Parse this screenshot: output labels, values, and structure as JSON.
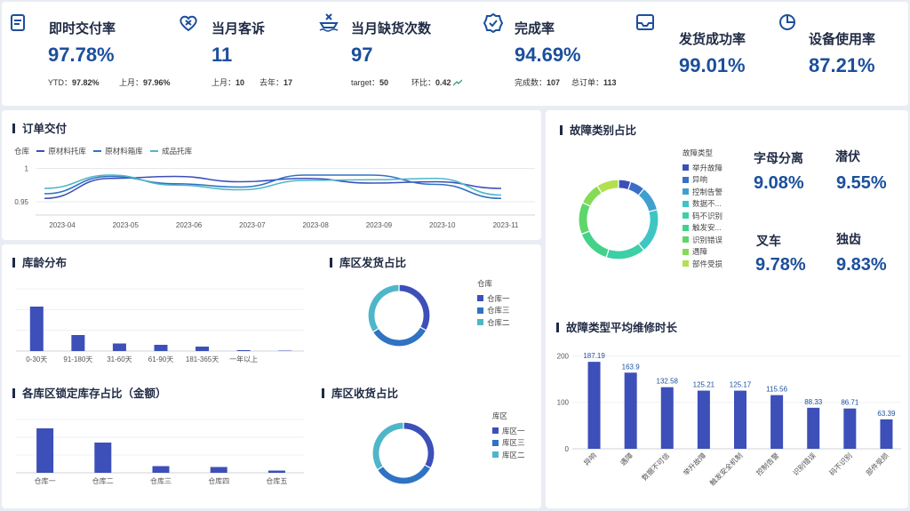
{
  "kpis": [
    {
      "title": "即时交付率",
      "value": "97.78%",
      "icon": "document-icon",
      "sub": [
        {
          "label": "YTD：",
          "value": "97.82%"
        },
        {
          "label": "上月：",
          "value": "97.96%"
        }
      ]
    },
    {
      "title": "当月客诉",
      "value": "11",
      "icon": "heart-x-icon",
      "sub": [
        {
          "label": "上月：",
          "value": "10"
        },
        {
          "label": "去年：",
          "value": "17"
        }
      ]
    },
    {
      "title": "当月缺货次数",
      "value": "97",
      "icon": "ship-x-icon",
      "sub": [
        {
          "label": "target：",
          "value": "50"
        },
        {
          "label": "环比：",
          "value": "0.42"
        }
      ]
    },
    {
      "title": "完成率",
      "value": "94.69%",
      "icon": "badge-check-icon",
      "sub": [
        {
          "label": "完成数：",
          "value": "107"
        },
        {
          "label": "总订单：",
          "value": "113"
        }
      ]
    },
    {
      "title": "发货成功率",
      "value": "99.01%",
      "icon": "inbox-icon",
      "sub": []
    },
    {
      "title": "设备使用率",
      "value": "87.21%",
      "icon": "pie-icon",
      "sub": []
    }
  ],
  "orders": {
    "title": "订单交付",
    "chart_data": {
      "type": "line",
      "legend_title": "仓库",
      "legend_position": "top-left",
      "x": [
        "2023-04",
        "2023-05",
        "2023-06",
        "2023-07",
        "2023-08",
        "2023-09",
        "2023-10",
        "2023-11"
      ],
      "ylim": [
        0.93,
        1.01
      ],
      "yticks": [
        "1",
        "0.95"
      ],
      "grid": true,
      "series": [
        {
          "name": "原材料托库",
          "color": "#3d4fb8",
          "values": [
            0.955,
            0.985,
            0.988,
            0.98,
            0.985,
            0.978,
            0.98,
            0.97
          ]
        },
        {
          "name": "原材料箱库",
          "color": "#2f73c2",
          "values": [
            0.962,
            0.988,
            0.977,
            0.972,
            0.99,
            0.99,
            0.976,
            0.955
          ]
        },
        {
          "name": "成品托库",
          "color": "#4fb6c9",
          "values": [
            0.97,
            0.99,
            0.975,
            0.968,
            0.982,
            0.983,
            0.985,
            0.96
          ]
        }
      ]
    }
  },
  "age": {
    "title": "库龄分布",
    "chart_data": {
      "type": "bar",
      "categories": [
        "0-30天",
        "91-180天",
        "31-60天",
        "61-90天",
        "181-365天",
        "一年以上",
        ""
      ],
      "values": [
        100,
        36,
        17,
        14,
        10,
        2,
        1
      ],
      "ylim": [
        0,
        140
      ],
      "color": "#3d4fb8"
    }
  },
  "lock": {
    "title": "各库区锁定库存占比（金额）",
    "chart_data": {
      "type": "bar",
      "categories": [
        "仓库一",
        "仓库二",
        "仓库三",
        "仓库四",
        "仓库五"
      ],
      "values": [
        100,
        68,
        15,
        13,
        5
      ],
      "ylim": [
        0,
        120
      ],
      "color": "#3d4fb8"
    }
  },
  "ship": {
    "title": "库区发货占比",
    "chart_data": {
      "type": "pie",
      "legend_title": "仓库",
      "labels": [
        "仓库一",
        "仓库三",
        "仓库二"
      ],
      "values": [
        33,
        33,
        34
      ],
      "colors": [
        "#3d4fb8",
        "#2f73c2",
        "#4fb6c9"
      ]
    }
  },
  "receive": {
    "title": "库区收货占比",
    "chart_data": {
      "type": "pie",
      "legend_title": "库区",
      "labels": [
        "库区一",
        "库区三",
        "库区二"
      ],
      "values": [
        33,
        33,
        34
      ],
      "colors": [
        "#3d4fb8",
        "#2f73c2",
        "#4fb6c9"
      ]
    }
  },
  "fault": {
    "title": "故障类别占比",
    "chart_data": {
      "type": "pie",
      "legend_title": "故障类型",
      "labels": [
        "举升故障",
        "异响",
        "控制告警",
        "数据不...",
        "码不识别",
        "触发安...",
        "识别错误",
        "遇障",
        "部件受损"
      ],
      "values": [
        5,
        6,
        10,
        18,
        16,
        14,
        13,
        9,
        9
      ],
      "colors": [
        "#3d4fb8",
        "#3a6fc8",
        "#3fa0cf",
        "#3ec6c4",
        "#3dcfa6",
        "#42d28a",
        "#5dd66c",
        "#86db56",
        "#b2e04e"
      ]
    },
    "kpis": [
      {
        "name": "字母分离",
        "value": "9.08%"
      },
      {
        "name": "潜伏",
        "value": "9.55%"
      },
      {
        "name": "叉车",
        "value": "9.78%"
      },
      {
        "name": "独齿",
        "value": "9.83%"
      }
    ]
  },
  "repair": {
    "title": "故障类型平均维修时长",
    "chart_data": {
      "type": "bar",
      "categories": [
        "异响",
        "遇障",
        "数据不可信",
        "举升故障",
        "触发安全机制",
        "控制告警",
        "识别错误",
        "码不识别",
        "部件受损"
      ],
      "values": [
        187.19,
        163.9,
        132.58,
        125.21,
        125.17,
        115.56,
        88.33,
        86.71,
        63.39
      ],
      "labels": [
        "187.19",
        "163.9",
        "132.58",
        "125.21",
        "125.17",
        "115.56",
        "88.33",
        "86.71",
        "63.39"
      ],
      "ylim": [
        0,
        220
      ],
      "yticks": [
        "200",
        "100",
        "0"
      ],
      "color": "#3d4fb8"
    }
  }
}
